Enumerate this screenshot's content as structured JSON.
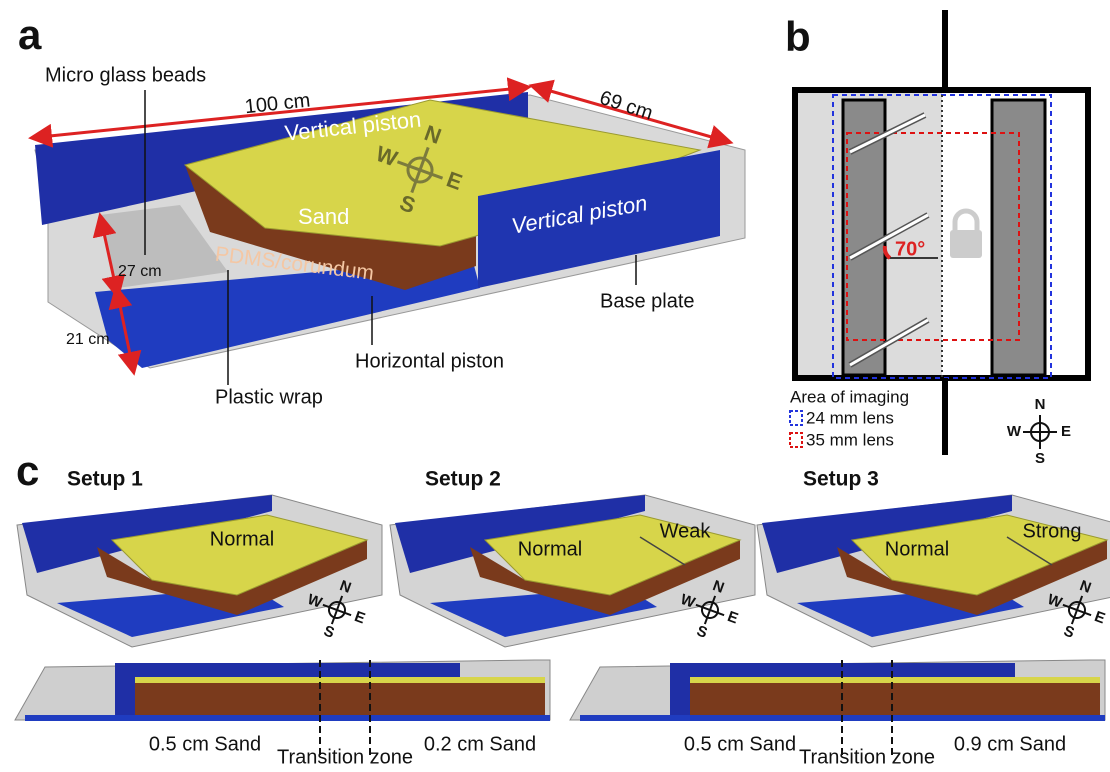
{
  "panel_a": {
    "letter": "a",
    "beads": "Micro glass beads",
    "length": "100 cm",
    "width": "69 cm",
    "piston_back": "Vertical piston",
    "piston_right": "Vertical piston",
    "sand": "Sand",
    "pdms": "PDMS/corundum",
    "d27": "27 cm",
    "d21": "21 cm",
    "base": "Base plate",
    "horizontal": "Horizontal piston",
    "wrap": "Plastic wrap",
    "compass": {
      "n": "N",
      "w": "W",
      "e": "E",
      "s": "S"
    }
  },
  "panel_b": {
    "letter": "b",
    "angle": "70°",
    "legend_title": "Area of imaging",
    "lens24": "24 mm lens",
    "lens35": "35 mm lens",
    "compass": {
      "n": "N",
      "w": "W",
      "e": "E",
      "s": "S"
    }
  },
  "panel_c": {
    "letter": "c",
    "setups": [
      {
        "title": "Setup 1",
        "zones": [
          "Normal"
        ],
        "compass": {
          "n": "N",
          "w": "W",
          "e": "E",
          "s": "S"
        }
      },
      {
        "title": "Setup 2",
        "zones": [
          "Normal",
          "Weak"
        ],
        "compass": {
          "n": "N",
          "w": "W",
          "e": "E",
          "s": "S"
        }
      },
      {
        "title": "Setup 3",
        "zones": [
          "Normal",
          "Strong"
        ],
        "compass": {
          "n": "N",
          "w": "W",
          "e": "E",
          "s": "S"
        }
      }
    ],
    "sections": [
      {
        "left": "0.5 cm Sand",
        "middle": "Transition zone",
        "right": "0.2 cm Sand"
      },
      {
        "left": "0.5 cm Sand",
        "middle": "Transition zone",
        "right": "0.9 cm Sand"
      }
    ]
  }
}
